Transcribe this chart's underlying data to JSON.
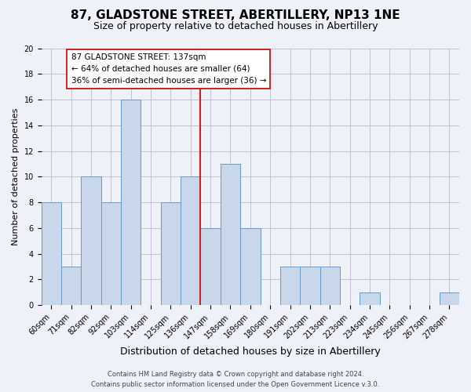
{
  "title": "87, GLADSTONE STREET, ABERTILLERY, NP13 1NE",
  "subtitle": "Size of property relative to detached houses in Abertillery",
  "xlabel": "Distribution of detached houses by size in Abertillery",
  "ylabel": "Number of detached properties",
  "bar_labels": [
    "60sqm",
    "71sqm",
    "82sqm",
    "92sqm",
    "103sqm",
    "114sqm",
    "125sqm",
    "136sqm",
    "147sqm",
    "158sqm",
    "169sqm",
    "180sqm",
    "191sqm",
    "202sqm",
    "213sqm",
    "223sqm",
    "234sqm",
    "245sqm",
    "256sqm",
    "267sqm",
    "278sqm"
  ],
  "bar_values": [
    8,
    3,
    10,
    8,
    16,
    0,
    8,
    10,
    6,
    11,
    6,
    0,
    3,
    3,
    3,
    0,
    1,
    0,
    0,
    0,
    1
  ],
  "bar_color": "#c8d8ea",
  "bar_edge_color": "#6699cc",
  "background_color": "#eef2f8",
  "grid_color": "#bbbbcc",
  "ref_line_color": "#cc2222",
  "annotation_line1": "87 GLADSTONE STREET: 137sqm",
  "annotation_line2": "← 64% of detached houses are smaller (64)",
  "annotation_line3": "36% of semi-detached houses are larger (36) →",
  "annotation_box_edgecolor": "#cc2222",
  "annotation_box_facecolor": "#ffffff",
  "ylim": [
    0,
    20
  ],
  "yticks": [
    0,
    2,
    4,
    6,
    8,
    10,
    12,
    14,
    16,
    18,
    20
  ],
  "footer_line1": "Contains HM Land Registry data © Crown copyright and database right 2024.",
  "footer_line2": "Contains public sector information licensed under the Open Government Licence v.3.0.",
  "title_fontsize": 11,
  "subtitle_fontsize": 9,
  "ylabel_fontsize": 8,
  "xlabel_fontsize": 9,
  "tick_fontsize": 7,
  "annotation_fontsize": 7.5,
  "footer_fontsize": 6
}
